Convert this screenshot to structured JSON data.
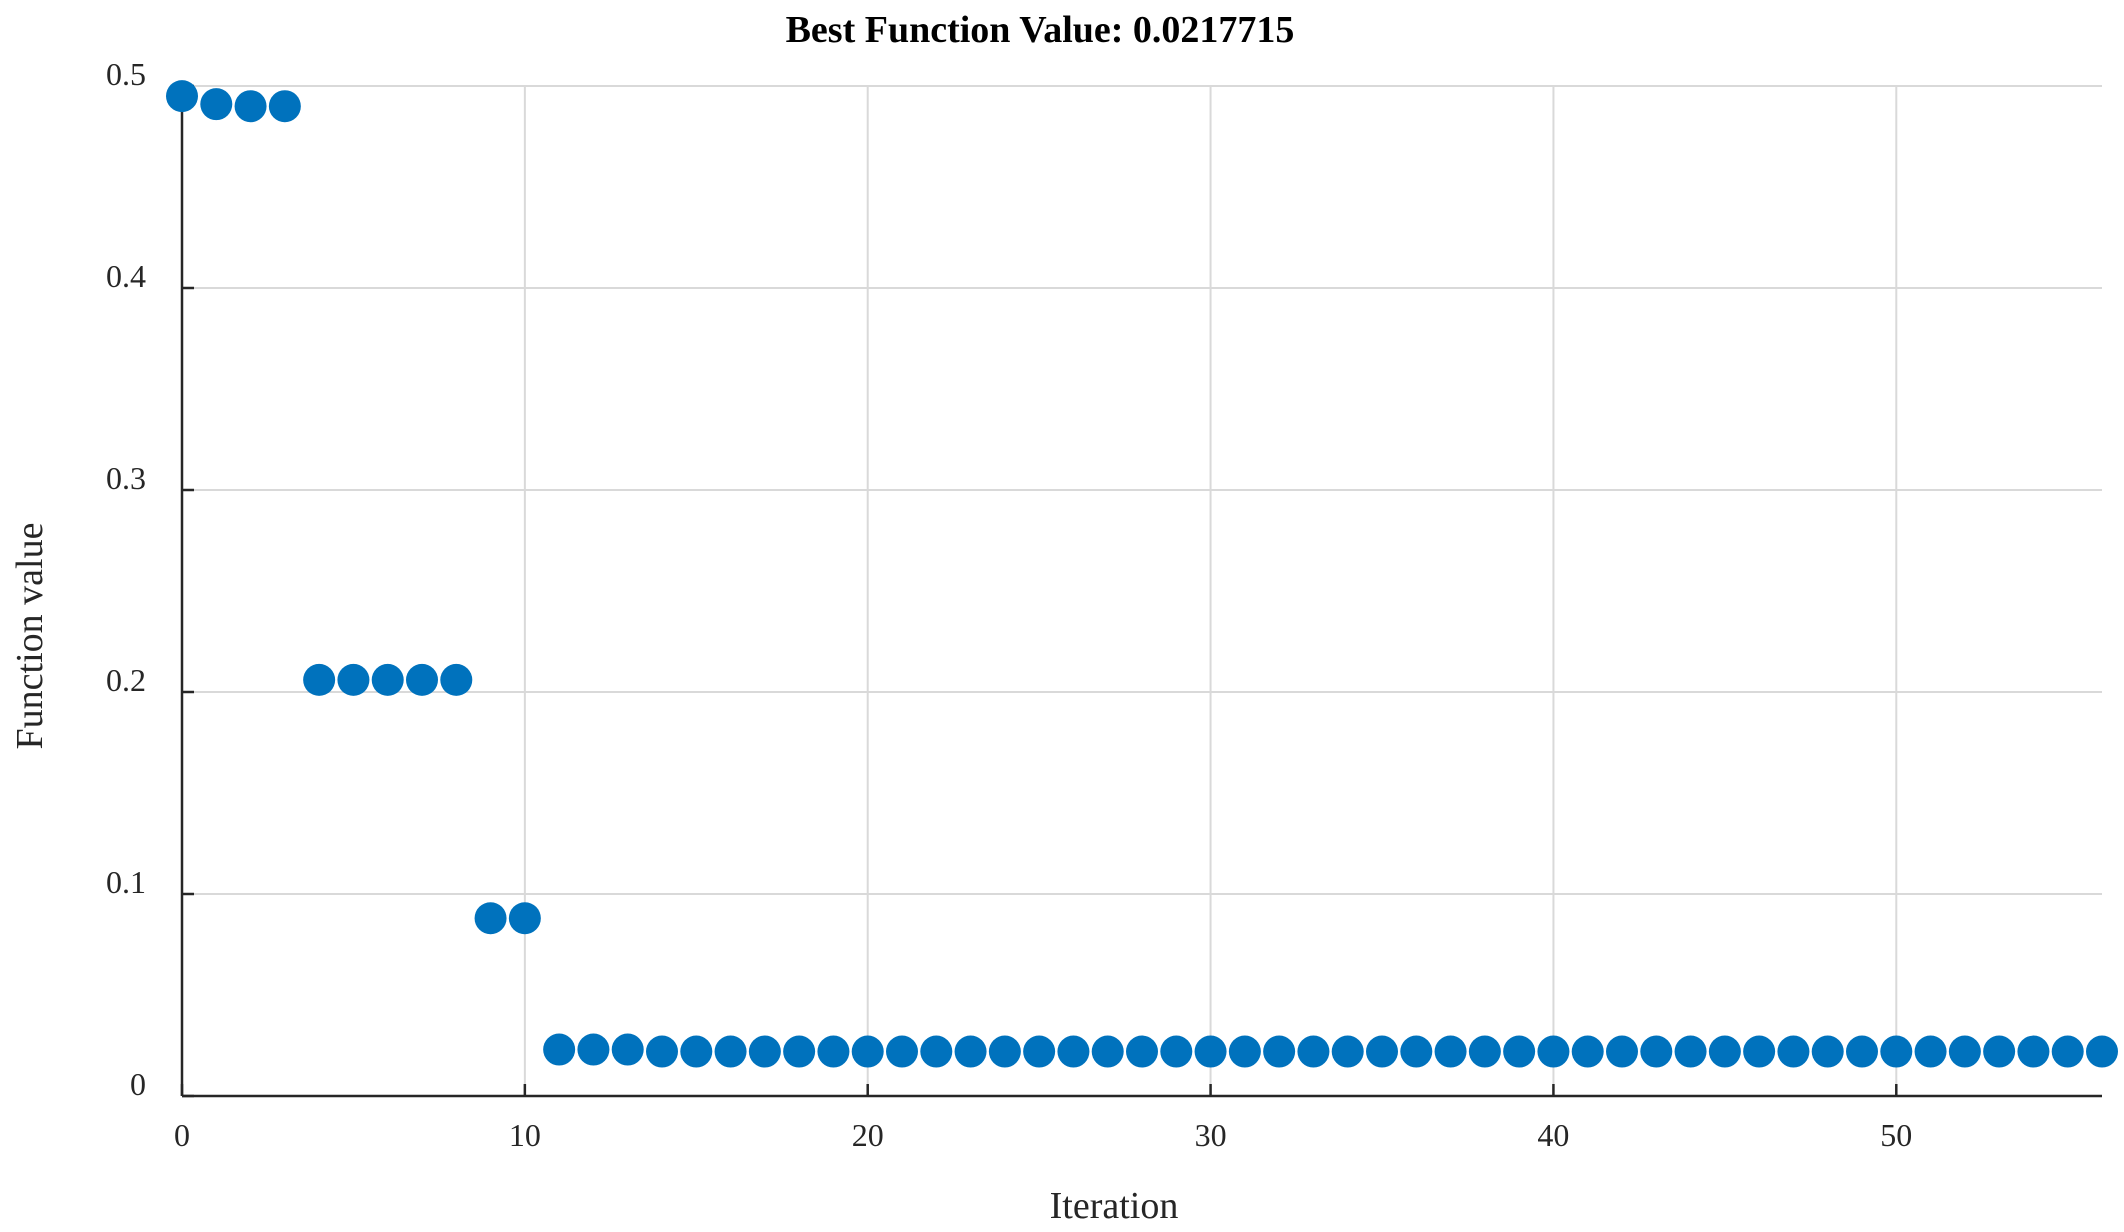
{
  "chart_data": {
    "type": "scatter",
    "title": "Best Function Value: 0.0217715",
    "xlabel": "Iteration",
    "ylabel": "Function value",
    "xlim": [
      0,
      56
    ],
    "ylim": [
      0,
      0.5
    ],
    "xticks": [
      0,
      10,
      20,
      30,
      40,
      50
    ],
    "yticks": [
      0,
      0.1,
      0.2,
      0.3,
      0.4,
      0.5
    ],
    "xtick_labels": [
      "0",
      "10",
      "20",
      "30",
      "40",
      "50"
    ],
    "ytick_labels": [
      "0",
      "0.1",
      "0.2",
      "0.3",
      "0.4",
      "0.5"
    ],
    "grid": true,
    "marker_color": "#0072BD",
    "series": [
      {
        "x": [
          0,
          1,
          2,
          3,
          4,
          5,
          6,
          7,
          8,
          9,
          10,
          11,
          12,
          13,
          14,
          15,
          16,
          17,
          18,
          19,
          20,
          21,
          22,
          23,
          24,
          25,
          26,
          27,
          28,
          29,
          30,
          31,
          32,
          33,
          34,
          35,
          36,
          37,
          38,
          39,
          40,
          41,
          42,
          43,
          44,
          45,
          46,
          47,
          48,
          49,
          50,
          51,
          52,
          53,
          54,
          55,
          56
        ],
        "values": [
          0.495,
          0.491,
          0.49,
          0.49,
          0.206,
          0.206,
          0.206,
          0.206,
          0.206,
          0.088,
          0.088,
          0.023,
          0.023,
          0.023,
          0.022,
          0.022,
          0.022,
          0.022,
          0.022,
          0.022,
          0.022,
          0.022,
          0.022,
          0.022,
          0.022,
          0.022,
          0.022,
          0.022,
          0.022,
          0.022,
          0.022,
          0.022,
          0.022,
          0.022,
          0.022,
          0.022,
          0.022,
          0.022,
          0.022,
          0.022,
          0.022,
          0.022,
          0.022,
          0.022,
          0.022,
          0.022,
          0.022,
          0.022,
          0.022,
          0.022,
          0.022,
          0.022,
          0.022,
          0.022,
          0.022,
          0.022,
          0.022
        ]
      }
    ]
  }
}
